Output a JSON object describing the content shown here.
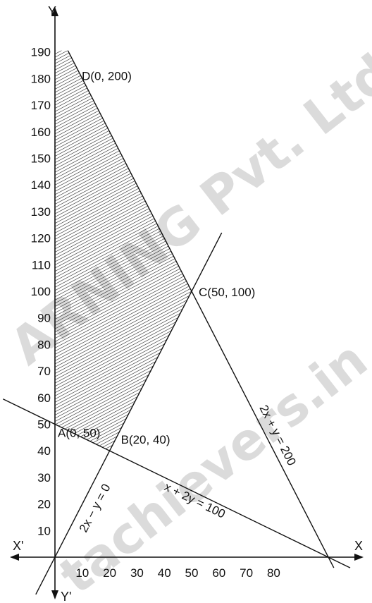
{
  "chart_data": {
    "type": "line",
    "x_ticks": [
      "10",
      "20",
      "30",
      "40",
      "50",
      "60",
      "70",
      "80"
    ],
    "y_ticks": [
      "10",
      "20",
      "30",
      "40",
      "50",
      "60",
      "70",
      "80",
      "90",
      "100",
      "110",
      "120",
      "130",
      "140",
      "150",
      "160",
      "170",
      "180",
      "190"
    ],
    "axis_labels": {
      "x": "X",
      "x_neg": "X'",
      "y": "Y",
      "y_neg": "Y'"
    },
    "lines": [
      {
        "label": "2x + y = 200",
        "a": 2,
        "b": 1,
        "c": 200
      },
      {
        "label": "2x − y = 0",
        "a": 2,
        "b": -1,
        "c": 0
      },
      {
        "label": "x + 2y = 100",
        "a": 1,
        "b": 2,
        "c": 100
      }
    ],
    "points": [
      {
        "label": "A(0, 50)",
        "x": 0,
        "y": 50
      },
      {
        "label": "B(20, 40)",
        "x": 20,
        "y": 40
      },
      {
        "label": "C(50, 100)",
        "x": 50,
        "y": 100
      },
      {
        "label": "D(0, 200)",
        "x": 0,
        "y": 200
      }
    ],
    "feasible_region": [
      [
        0,
        50
      ],
      [
        20,
        40
      ],
      [
        50,
        100
      ],
      [
        0,
        200
      ]
    ],
    "shading": "hatched"
  },
  "watermark": {
    "lines": [
      "ARNING Pvt. Ltd.",
      "tachievers.in"
    ],
    "color": "#bfbfbf"
  }
}
